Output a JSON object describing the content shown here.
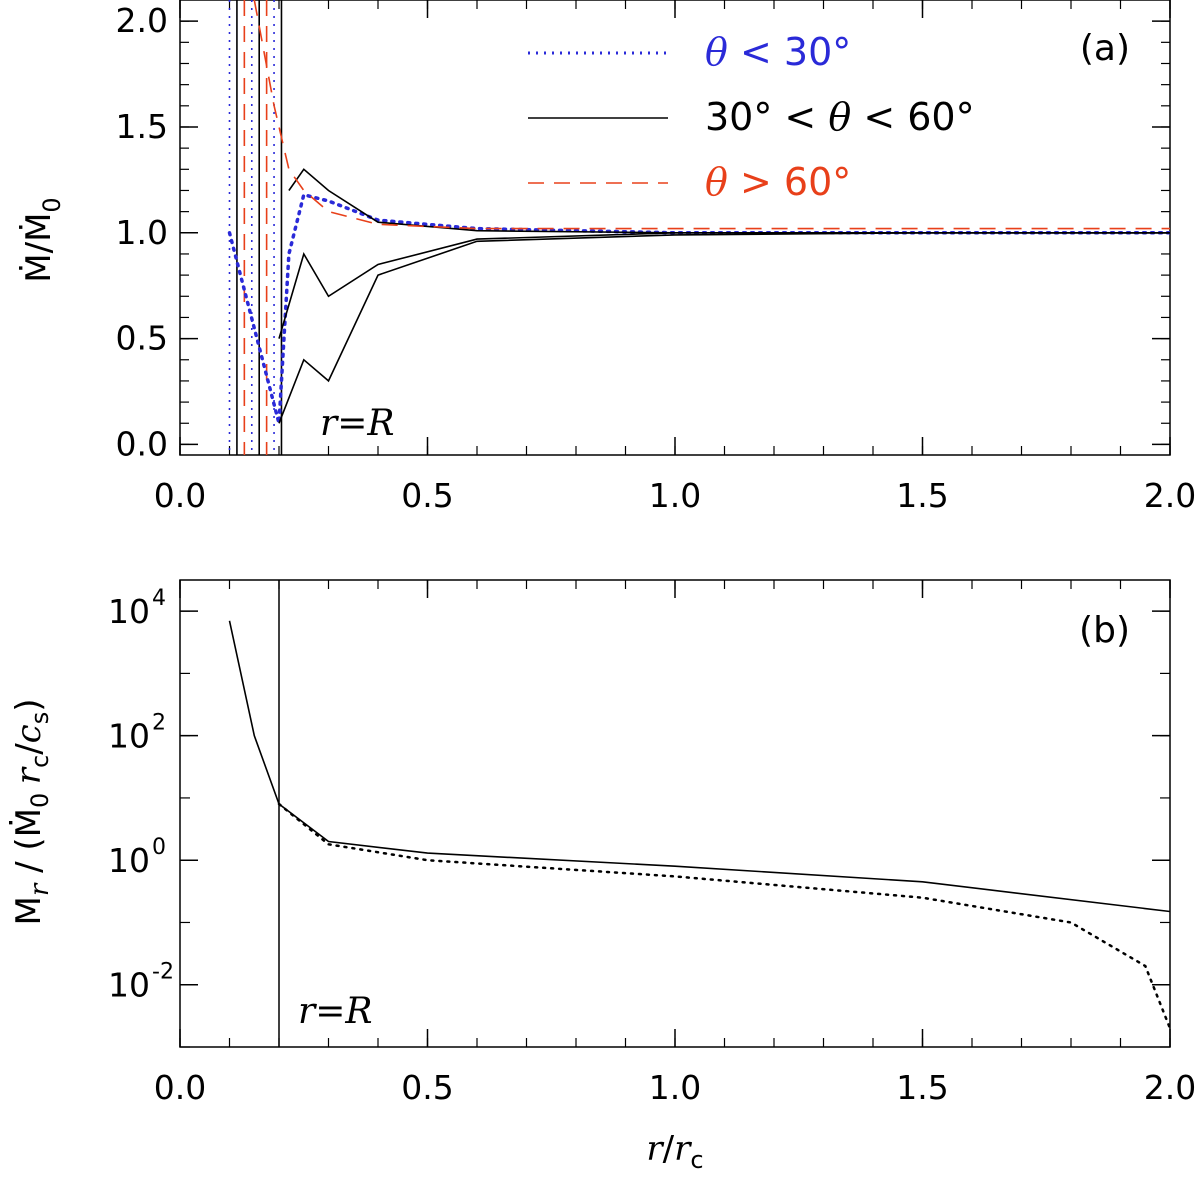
{
  "colors": {
    "blue": "#2a2ad8",
    "black": "#000000",
    "red": "#e8401a"
  },
  "chart_data": [
    {
      "id": "a",
      "type": "line",
      "panel_label": "(a)",
      "ylabel_text": "Ṁ/Ṁ",
      "ylabel_sub": "0",
      "xlim": [
        0.0,
        2.0
      ],
      "ylim": [
        -0.05,
        2.1
      ],
      "xticks": [
        "0.0",
        "0.5",
        "1.0",
        "1.5",
        "2.0"
      ],
      "xtick_values": [
        0.0,
        0.5,
        1.0,
        1.5,
        2.0
      ],
      "yticks": [
        "0.0",
        "0.5",
        "1.0",
        "1.5",
        "2.0"
      ],
      "ytick_values": [
        0.0,
        0.5,
        1.0,
        1.5,
        2.0
      ],
      "annotation": "r=R",
      "legend": [
        {
          "key": "blue",
          "style": "dotted",
          "sym": "θ",
          "text": " < 30°"
        },
        {
          "key": "black",
          "style": "solid",
          "sym": "",
          "text": "30° < ",
          "sym2": "θ",
          "text2": " < 60°"
        },
        {
          "key": "red",
          "style": "dashed",
          "sym": "θ",
          "text": " > 60°"
        }
      ],
      "series": [
        {
          "name": "theta<30",
          "color": "blue",
          "style": "dotted",
          "x": [
            0.1,
            0.2,
            0.22,
            0.25,
            0.3,
            0.4,
            0.6,
            1.0,
            1.5,
            1.95,
            2.0
          ],
          "y": [
            1.0,
            0.1,
            0.9,
            1.18,
            1.15,
            1.06,
            1.02,
            1.0,
            1.0,
            1.0,
            1.0
          ]
        },
        {
          "name": "30-60 (a)",
          "color": "black",
          "style": "solid",
          "x": [
            0.2,
            0.25,
            0.3,
            0.4,
            0.6,
            1.0,
            1.5,
            2.0
          ],
          "y": [
            0.1,
            0.4,
            0.3,
            0.8,
            0.96,
            0.99,
            1.0,
            1.0
          ]
        },
        {
          "name": "30-60 (b)",
          "color": "black",
          "style": "solid",
          "x": [
            0.2,
            0.25,
            0.3,
            0.4,
            0.6,
            1.0,
            1.5,
            2.0
          ],
          "y": [
            0.5,
            0.9,
            0.7,
            0.85,
            0.97,
            1.0,
            1.0,
            1.0
          ]
        },
        {
          "name": "30-60 (c)",
          "color": "black",
          "style": "solid",
          "x": [
            0.22,
            0.25,
            0.3,
            0.4,
            0.6,
            1.0,
            1.5,
            2.0
          ],
          "y": [
            1.2,
            1.3,
            1.2,
            1.05,
            1.01,
            1.0,
            1.0,
            1.0
          ]
        },
        {
          "name": "theta>60",
          "color": "red",
          "style": "dashed",
          "x": [
            0.15,
            0.19,
            0.22,
            0.25,
            0.3,
            0.4,
            0.6,
            1.0,
            1.5,
            2.0
          ],
          "y": [
            2.1,
            1.6,
            1.3,
            1.2,
            1.1,
            1.04,
            1.02,
            1.02,
            1.02,
            1.02
          ]
        }
      ]
    },
    {
      "id": "b",
      "type": "line",
      "panel_label": "(b)",
      "ylabel_M": "M",
      "ylabel_r": "r",
      "ylabel_mid": " / (Ṁ",
      "ylabel_zero": "0",
      "ylabel_rc": "r",
      "ylabel_c": "c",
      "ylabel_slash": "/",
      "ylabel_cs": "c",
      "ylabel_s": "s",
      "ylabel_close": ")",
      "xlabel_r": "r",
      "xlabel_slash": "/",
      "xlabel_rc": "r",
      "xlabel_c": "c",
      "xlim": [
        0.0,
        2.0
      ],
      "ylim_log10": [
        -3.0,
        4.5
      ],
      "xticks": [
        "0.0",
        "0.5",
        "1.0",
        "1.5",
        "2.0"
      ],
      "xtick_values": [
        0.0,
        0.5,
        1.0,
        1.5,
        2.0
      ],
      "ytick_base": "10",
      "ytick_exponents": [
        "-2",
        "0",
        "2",
        "4"
      ],
      "ytick_values_log10": [
        -2,
        0,
        2,
        4
      ],
      "annotation": "r=R",
      "vline_x": 0.2,
      "series": [
        {
          "name": "solid",
          "color": "black",
          "style": "solid",
          "x": [
            0.1,
            0.15,
            0.2,
            0.3,
            0.5,
            1.0,
            1.5,
            2.0
          ],
          "y": [
            7000,
            100,
            8,
            2.0,
            1.3,
            0.8,
            0.45,
            0.15
          ]
        },
        {
          "name": "dotted",
          "color": "black",
          "style": "dotted",
          "x": [
            0.2,
            0.3,
            0.5,
            1.0,
            1.5,
            1.8,
            1.95,
            2.0
          ],
          "y": [
            8,
            1.8,
            1.0,
            0.55,
            0.25,
            0.1,
            0.02,
            0.002
          ]
        }
      ]
    }
  ]
}
